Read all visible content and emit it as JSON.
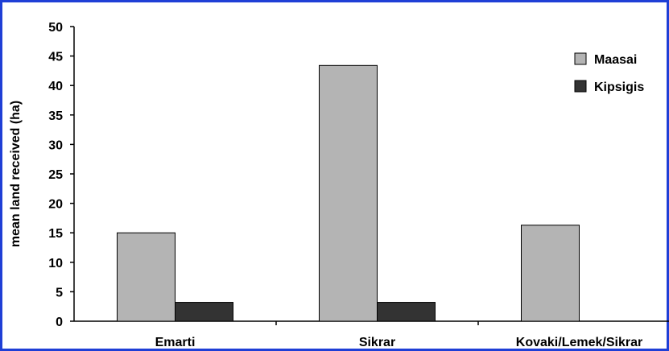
{
  "chart_data": {
    "type": "bar",
    "categories": [
      "Emarti",
      "Sikrar",
      "Kovaki/Lemek/Sikrar"
    ],
    "series": [
      {
        "name": "Maasai",
        "values": [
          15,
          43.4,
          16.3
        ],
        "color": "#b4b4b4"
      },
      {
        "name": "Kipsigis",
        "values": [
          3.2,
          3.2,
          null
        ],
        "color": "#333333"
      }
    ],
    "ylabel": "mean land received (ha)",
    "xlabel": "",
    "ylim": [
      0,
      50
    ],
    "yticks": [
      0,
      5,
      10,
      15,
      20,
      25,
      30,
      35,
      40,
      45,
      50
    ],
    "grid": false,
    "legend_position": "top-right",
    "frame_color": "#1f3fd6"
  }
}
